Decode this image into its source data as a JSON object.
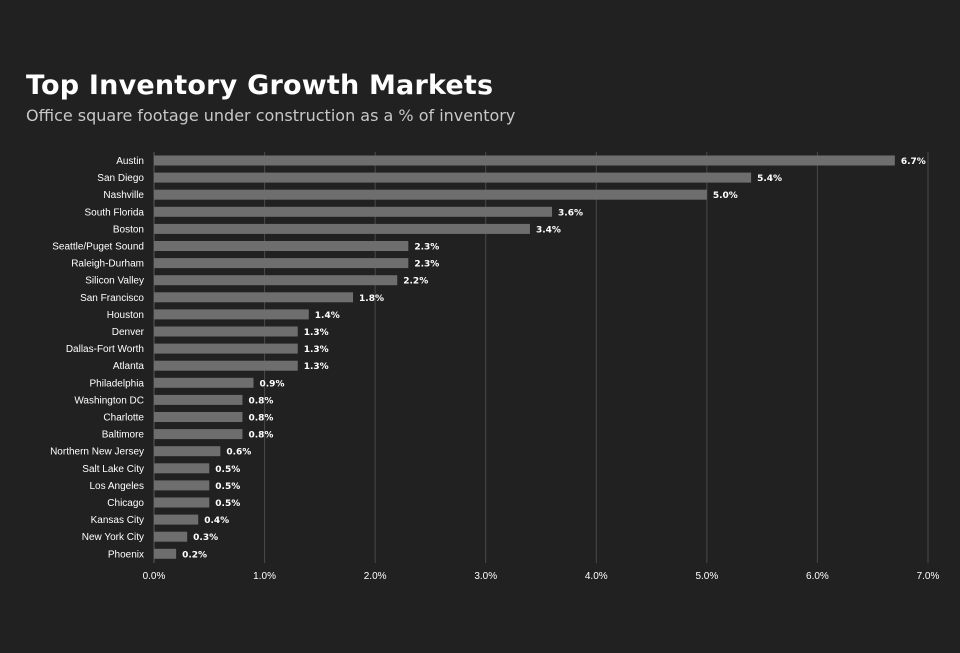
{
  "chart_data": {
    "type": "bar",
    "orientation": "horizontal",
    "title": "Top Inventory Growth Markets",
    "subtitle": "Office square footage under construction as a % of inventory",
    "categories": [
      "Austin",
      "San Diego",
      "Nashville",
      "South Florida",
      "Boston",
      "Seattle/Puget Sound",
      "Raleigh-Durham",
      "Silicon Valley",
      "San Francisco",
      "Houston",
      "Denver",
      "Dallas-Fort Worth",
      "Atlanta",
      "Philadelphia",
      "Washington DC",
      "Charlotte",
      "Baltimore",
      "Northern New Jersey",
      "Salt Lake City",
      "Los Angeles",
      "Chicago",
      "Kansas City",
      "New York City",
      "Phoenix"
    ],
    "values": [
      6.7,
      5.4,
      5.0,
      3.6,
      3.4,
      2.3,
      2.3,
      2.2,
      1.8,
      1.4,
      1.3,
      1.3,
      1.3,
      0.9,
      0.8,
      0.8,
      0.8,
      0.6,
      0.5,
      0.5,
      0.5,
      0.4,
      0.3,
      0.2
    ],
    "value_labels": [
      "6.7%",
      "5.4%",
      "5.0%",
      "3.6%",
      "3.4%",
      "2.3%",
      "2.3%",
      "2.2%",
      "1.8%",
      "1.4%",
      "1.3%",
      "1.3%",
      "1.3%",
      "0.9%",
      "0.8%",
      "0.8%",
      "0.8%",
      "0.6%",
      "0.5%",
      "0.5%",
      "0.5%",
      "0.4%",
      "0.3%",
      "0.2%"
    ],
    "xticks": [
      0,
      1,
      2,
      3,
      4,
      5,
      6,
      7
    ],
    "xtick_labels": [
      "0.0%",
      "1.0%",
      "2.0%",
      "3.0%",
      "4.0%",
      "5.0%",
      "6.0%",
      "7.0%"
    ],
    "xlim": [
      0,
      7
    ],
    "grid": true,
    "legend": "none",
    "colors": {
      "background": "#212121",
      "bar": "#6e6e6e",
      "grid": "#4a4a4a",
      "text": "#ffffff"
    }
  }
}
